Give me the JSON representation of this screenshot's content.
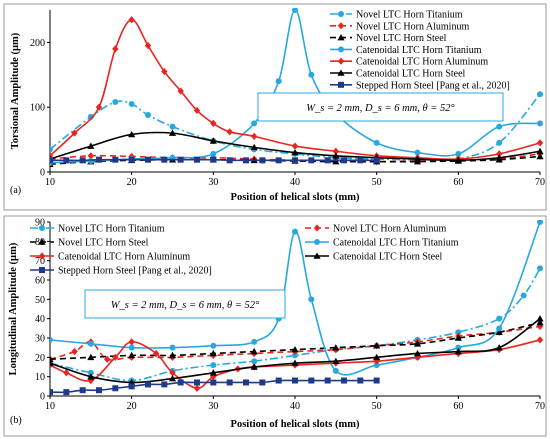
{
  "chart_data": [
    {
      "type": "line",
      "panel_label": "(a)",
      "xlabel": "Position of helical slots (mm)",
      "ylabel": "Torsional Amplitude (µm)",
      "xlim": [
        10,
        70
      ],
      "ylim": [
        0,
        250
      ],
      "xticks": [
        10,
        20,
        30,
        40,
        50,
        60,
        70
      ],
      "yticks": [
        0,
        100,
        200
      ],
      "grid": false,
      "legend_position": "top-right",
      "annotation": "W_s = 2 mm, D_s = 6 mm, θ = 52°",
      "series": [
        {
          "name": "Novel LTC Horn Titanium",
          "color": "#29a8e0",
          "dash": "8,3,2,3",
          "marker": "circle",
          "x": [
            10,
            15,
            18,
            20,
            22,
            25,
            30,
            35,
            40,
            45,
            50,
            55,
            60,
            65,
            70
          ],
          "y": [
            35,
            85,
            108,
            105,
            88,
            70,
            48,
            35,
            28,
            22,
            20,
            19,
            20,
            45,
            120
          ]
        },
        {
          "name": "Novel LTC Horn Aluminum",
          "color": "#e8251f",
          "dash": "6,4",
          "marker": "diamond",
          "x": [
            10,
            15,
            20,
            25,
            30,
            35,
            40,
            45,
            50,
            55,
            60,
            65,
            70
          ],
          "y": [
            20,
            25,
            24,
            22,
            22,
            20,
            18,
            17,
            16,
            17,
            18,
            20,
            28
          ]
        },
        {
          "name": "Novel LTC Horn Steel",
          "color": "#000000",
          "dash": "6,4",
          "marker": "triangle",
          "x": [
            10,
            15,
            20,
            25,
            30,
            35,
            40,
            45,
            50,
            55,
            60,
            65,
            70
          ],
          "y": [
            12,
            16,
            18,
            19,
            19,
            18,
            17,
            16,
            16,
            16,
            17,
            19,
            24
          ]
        },
        {
          "name": "Catenoidal LTC Horn Titanium",
          "color": "#29a8e0",
          "dash": "",
          "marker": "circle",
          "x": [
            10,
            15,
            20,
            25,
            30,
            35,
            38,
            40,
            42,
            45,
            50,
            55,
            60,
            65,
            70
          ],
          "y": [
            14,
            17,
            20,
            22,
            28,
            75,
            140,
            250,
            150,
            90,
            45,
            30,
            28,
            70,
            75
          ]
        },
        {
          "name": "Catenoidal LTC Horn Aluminum",
          "color": "#e8251f",
          "dash": "",
          "marker": "diamond",
          "x": [
            10,
            13,
            16,
            18,
            20,
            22,
            24,
            26,
            28,
            30,
            32,
            35,
            40,
            45,
            50,
            55,
            60,
            65,
            70
          ],
          "y": [
            25,
            60,
            100,
            190,
            235,
            195,
            155,
            125,
            95,
            75,
            62,
            55,
            40,
            32,
            25,
            22,
            20,
            28,
            45
          ]
        },
        {
          "name": "Catenoidal LTC Horn Steel",
          "color": "#000000",
          "dash": "",
          "marker": "triangle",
          "x": [
            10,
            15,
            20,
            25,
            30,
            35,
            40,
            45,
            50,
            55,
            60,
            65,
            70
          ],
          "y": [
            20,
            40,
            58,
            60,
            48,
            38,
            30,
            25,
            22,
            20,
            18,
            22,
            32
          ]
        },
        {
          "name": "Stepped Horn Steel [Pang et al., 2020]",
          "color": "#1f3a8a",
          "dash": "",
          "marker": "square",
          "x": [
            10,
            12,
            14,
            16,
            18,
            20,
            22,
            24,
            26,
            28,
            30,
            32,
            34,
            36,
            38,
            40,
            42,
            44,
            46,
            48,
            50
          ],
          "y": [
            18,
            18,
            18,
            19,
            19,
            19,
            19,
            19,
            19,
            19,
            19,
            18,
            18,
            18,
            18,
            18,
            18,
            18,
            18,
            18,
            18
          ]
        }
      ]
    },
    {
      "type": "line",
      "panel_label": "(b)",
      "xlabel": "Position of helical slots (mm)",
      "ylabel": "Longitudinal Amplitude (µm)",
      "xlim": [
        10,
        70
      ],
      "ylim": [
        0,
        90
      ],
      "xticks": [
        10,
        20,
        30,
        40,
        50,
        60,
        70
      ],
      "yticks": [
        0,
        10,
        20,
        30,
        40,
        50,
        60,
        70,
        80,
        90
      ],
      "grid": false,
      "legend_position": "top",
      "annotation": "W_s = 2 mm, D_s = 6 mm, θ = 52°",
      "series": [
        {
          "name": "Novel LTC Horn Titanium",
          "color": "#29a8e0",
          "dash": "8,3,2,3",
          "marker": "circle",
          "x": [
            10,
            15,
            20,
            25,
            30,
            35,
            40,
            45,
            50,
            55,
            60,
            65,
            68,
            70
          ],
          "y": [
            17,
            12,
            8,
            13,
            16,
            18,
            21,
            24,
            26,
            29,
            33,
            40,
            52,
            66
          ]
        },
        {
          "name": "Novel LTC Horn Aluminum",
          "color": "#e8251f",
          "dash": "6,4",
          "marker": "diamond",
          "x": [
            10,
            13,
            15,
            17,
            20,
            25,
            30,
            35,
            40,
            45,
            50,
            55,
            60,
            65,
            70
          ],
          "y": [
            19,
            23,
            28,
            19,
            20,
            20,
            21,
            22,
            23,
            24,
            26,
            28,
            31,
            33,
            36
          ]
        },
        {
          "name": "Novel LTC Horn Steel",
          "color": "#000000",
          "dash": "6,4",
          "marker": "triangle",
          "x": [
            10,
            15,
            20,
            25,
            30,
            35,
            40,
            45,
            50,
            55,
            60,
            65,
            70
          ],
          "y": [
            19,
            20,
            21,
            21,
            22,
            23,
            24,
            25,
            26,
            27,
            30,
            33,
            38
          ]
        },
        {
          "name": "Catenoidal LTC Horn Titanium",
          "color": "#29a8e0",
          "dash": "",
          "marker": "circle",
          "x": [
            10,
            15,
            20,
            25,
            30,
            35,
            38,
            40,
            42,
            45,
            50,
            55,
            60,
            65,
            70
          ],
          "y": [
            29,
            27,
            25,
            25,
            26,
            28,
            40,
            85,
            50,
            13,
            16,
            20,
            25,
            35,
            90
          ]
        },
        {
          "name": "Catenoidal LTC Horn Aluminum",
          "color": "#e8251f",
          "dash": "",
          "marker": "diamond",
          "x": [
            10,
            12,
            15,
            18,
            20,
            23,
            25,
            28,
            30,
            33,
            35,
            40,
            45,
            50,
            55,
            60,
            65,
            70
          ],
          "y": [
            16,
            12,
            8,
            20,
            28,
            22,
            12,
            4,
            10,
            14,
            15,
            16,
            17,
            18,
            20,
            22,
            24,
            29
          ]
        },
        {
          "name": "Catenoidal LTC Horn Steel",
          "color": "#000000",
          "dash": "",
          "marker": "triangle",
          "x": [
            10,
            15,
            20,
            25,
            30,
            35,
            40,
            45,
            50,
            55,
            60,
            65,
            70
          ],
          "y": [
            17,
            10,
            7,
            9,
            12,
            15,
            17,
            18,
            20,
            22,
            23,
            25,
            40
          ]
        },
        {
          "name": "Stepped Horn Steel [Pang et al., 2020]",
          "color": "#1f3a8a",
          "dash": "",
          "marker": "square",
          "x": [
            10,
            12,
            14,
            16,
            18,
            20,
            22,
            24,
            26,
            28,
            30,
            32,
            34,
            36,
            38,
            40,
            42,
            44,
            46,
            48,
            50
          ],
          "y": [
            2,
            2,
            3,
            3,
            4,
            5,
            6,
            6,
            7,
            7,
            7,
            7,
            7,
            7,
            8,
            8,
            8,
            8,
            8,
            8,
            8
          ]
        }
      ]
    }
  ]
}
